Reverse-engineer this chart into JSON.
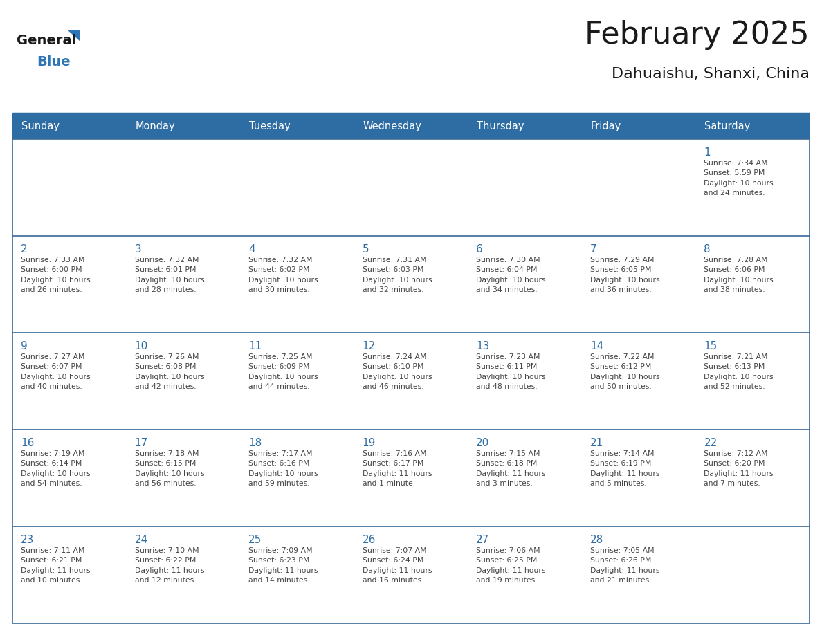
{
  "title": "February 2025",
  "subtitle": "Dahuaishu, Shanxi, China",
  "header_bg_color": "#2E6DA4",
  "header_text_color": "#FFFFFF",
  "cell_bg_color": "#FFFFFF",
  "grid_line_color": "#2E6DA4",
  "row_divider_color": "#3A6A9A",
  "day_names": [
    "Sunday",
    "Monday",
    "Tuesday",
    "Wednesday",
    "Thursday",
    "Friday",
    "Saturday"
  ],
  "title_color": "#1a1a1a",
  "subtitle_color": "#1a1a1a",
  "day_number_color": "#2E6DA4",
  "info_text_color": "#444444",
  "logo_general_color": "#1a1a1a",
  "logo_blue_color": "#2E75B6",
  "weeks": [
    [
      {
        "day": null,
        "info": ""
      },
      {
        "day": null,
        "info": ""
      },
      {
        "day": null,
        "info": ""
      },
      {
        "day": null,
        "info": ""
      },
      {
        "day": null,
        "info": ""
      },
      {
        "day": null,
        "info": ""
      },
      {
        "day": 1,
        "info": "Sunrise: 7:34 AM\nSunset: 5:59 PM\nDaylight: 10 hours\nand 24 minutes."
      }
    ],
    [
      {
        "day": 2,
        "info": "Sunrise: 7:33 AM\nSunset: 6:00 PM\nDaylight: 10 hours\nand 26 minutes."
      },
      {
        "day": 3,
        "info": "Sunrise: 7:32 AM\nSunset: 6:01 PM\nDaylight: 10 hours\nand 28 minutes."
      },
      {
        "day": 4,
        "info": "Sunrise: 7:32 AM\nSunset: 6:02 PM\nDaylight: 10 hours\nand 30 minutes."
      },
      {
        "day": 5,
        "info": "Sunrise: 7:31 AM\nSunset: 6:03 PM\nDaylight: 10 hours\nand 32 minutes."
      },
      {
        "day": 6,
        "info": "Sunrise: 7:30 AM\nSunset: 6:04 PM\nDaylight: 10 hours\nand 34 minutes."
      },
      {
        "day": 7,
        "info": "Sunrise: 7:29 AM\nSunset: 6:05 PM\nDaylight: 10 hours\nand 36 minutes."
      },
      {
        "day": 8,
        "info": "Sunrise: 7:28 AM\nSunset: 6:06 PM\nDaylight: 10 hours\nand 38 minutes."
      }
    ],
    [
      {
        "day": 9,
        "info": "Sunrise: 7:27 AM\nSunset: 6:07 PM\nDaylight: 10 hours\nand 40 minutes."
      },
      {
        "day": 10,
        "info": "Sunrise: 7:26 AM\nSunset: 6:08 PM\nDaylight: 10 hours\nand 42 minutes."
      },
      {
        "day": 11,
        "info": "Sunrise: 7:25 AM\nSunset: 6:09 PM\nDaylight: 10 hours\nand 44 minutes."
      },
      {
        "day": 12,
        "info": "Sunrise: 7:24 AM\nSunset: 6:10 PM\nDaylight: 10 hours\nand 46 minutes."
      },
      {
        "day": 13,
        "info": "Sunrise: 7:23 AM\nSunset: 6:11 PM\nDaylight: 10 hours\nand 48 minutes."
      },
      {
        "day": 14,
        "info": "Sunrise: 7:22 AM\nSunset: 6:12 PM\nDaylight: 10 hours\nand 50 minutes."
      },
      {
        "day": 15,
        "info": "Sunrise: 7:21 AM\nSunset: 6:13 PM\nDaylight: 10 hours\nand 52 minutes."
      }
    ],
    [
      {
        "day": 16,
        "info": "Sunrise: 7:19 AM\nSunset: 6:14 PM\nDaylight: 10 hours\nand 54 minutes."
      },
      {
        "day": 17,
        "info": "Sunrise: 7:18 AM\nSunset: 6:15 PM\nDaylight: 10 hours\nand 56 minutes."
      },
      {
        "day": 18,
        "info": "Sunrise: 7:17 AM\nSunset: 6:16 PM\nDaylight: 10 hours\nand 59 minutes."
      },
      {
        "day": 19,
        "info": "Sunrise: 7:16 AM\nSunset: 6:17 PM\nDaylight: 11 hours\nand 1 minute."
      },
      {
        "day": 20,
        "info": "Sunrise: 7:15 AM\nSunset: 6:18 PM\nDaylight: 11 hours\nand 3 minutes."
      },
      {
        "day": 21,
        "info": "Sunrise: 7:14 AM\nSunset: 6:19 PM\nDaylight: 11 hours\nand 5 minutes."
      },
      {
        "day": 22,
        "info": "Sunrise: 7:12 AM\nSunset: 6:20 PM\nDaylight: 11 hours\nand 7 minutes."
      }
    ],
    [
      {
        "day": 23,
        "info": "Sunrise: 7:11 AM\nSunset: 6:21 PM\nDaylight: 11 hours\nand 10 minutes."
      },
      {
        "day": 24,
        "info": "Sunrise: 7:10 AM\nSunset: 6:22 PM\nDaylight: 11 hours\nand 12 minutes."
      },
      {
        "day": 25,
        "info": "Sunrise: 7:09 AM\nSunset: 6:23 PM\nDaylight: 11 hours\nand 14 minutes."
      },
      {
        "day": 26,
        "info": "Sunrise: 7:07 AM\nSunset: 6:24 PM\nDaylight: 11 hours\nand 16 minutes."
      },
      {
        "day": 27,
        "info": "Sunrise: 7:06 AM\nSunset: 6:25 PM\nDaylight: 11 hours\nand 19 minutes."
      },
      {
        "day": 28,
        "info": "Sunrise: 7:05 AM\nSunset: 6:26 PM\nDaylight: 11 hours\nand 21 minutes."
      },
      {
        "day": null,
        "info": ""
      }
    ]
  ]
}
